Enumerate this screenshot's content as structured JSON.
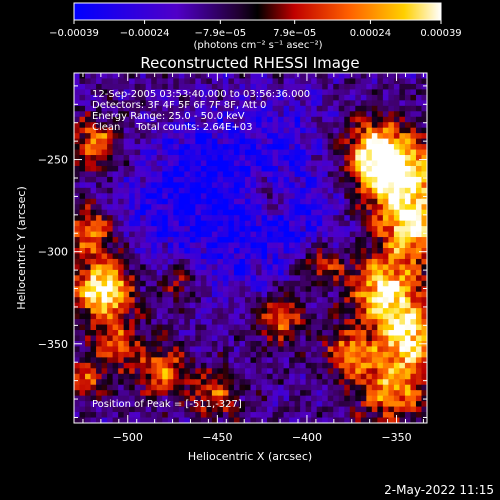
{
  "chart_data": {
    "type": "heatmap",
    "title": "Reconstructed RHESSI Image",
    "xlabel": "Heliocentric X (arcsec)",
    "ylabel": "Heliocentric Y (arcsec)",
    "xlim": [
      -530,
      -333
    ],
    "ylim": [
      -393,
      -203
    ],
    "x_ticks": [
      -500,
      -450,
      -400,
      -350
    ],
    "y_ticks": [
      -250,
      -300,
      -350
    ],
    "x_tick_labels": [
      "−500",
      "−450",
      "−400",
      "−350"
    ],
    "y_tick_labels": [
      "−250",
      "−300",
      "−350"
    ],
    "colorbar": {
      "ticks": [
        -0.00039,
        -0.00024,
        -7.9e-05,
        7.9e-05,
        0.00024,
        0.00039
      ],
      "tick_labels": [
        "−0.00039",
        "−0.00024",
        "−7.9e−05",
        "7.9e−05",
        "0.00024",
        "0.00039"
      ],
      "range": [
        -0.00039,
        0.00039
      ],
      "units_label": "(photons cm⁻² s⁻¹ asec⁻²)"
    },
    "annotations": [
      "12-Sep-2005 03:53:40.000 to 03:56:36.000",
      "Detectors: 3F 4F 5F 6F 7F 8F, Att 0",
      "Energy Range: 25.0 - 50.0 keV",
      "Clean     Total counts: 2.64E+03",
      "Position of Peak = [-511,-327]"
    ],
    "peak": {
      "x": -511,
      "y": -327
    },
    "grid": false,
    "colors": {
      "background": "#000000",
      "colormap": [
        "#0000ff",
        "#4b00d0",
        "#7a00a8",
        "#000000",
        "#c80000",
        "#ff8000",
        "#ffff00",
        "#ffffff"
      ]
    }
  },
  "footer": {
    "date": "2-May-2022 11:15"
  }
}
